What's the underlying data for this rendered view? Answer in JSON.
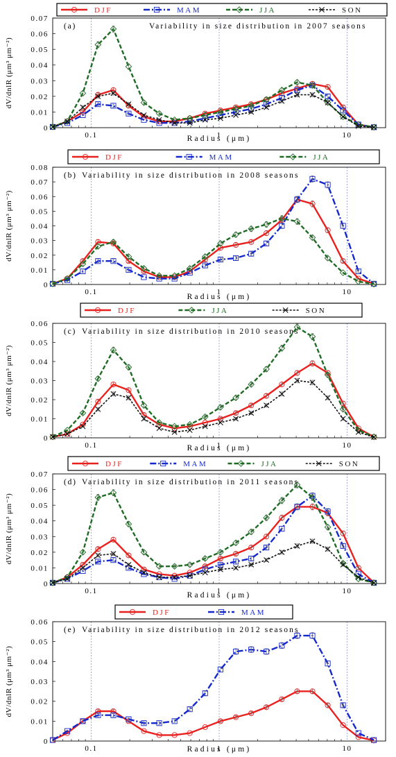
{
  "figure": {
    "xlabel": "Radius (μm)",
    "ylabel": "dV/dnlR (μm³ μm⁻²)",
    "x_ticks": [
      "0.1",
      "1",
      "10"
    ]
  },
  "colors": {
    "DJF": "#e8201e",
    "MAM": "#1428cc",
    "JJA": "#1e6b23",
    "SON": "#111111"
  },
  "markers": {
    "DJF": "circle",
    "MAM": "square",
    "JJA": "diamond",
    "SON": "cross"
  },
  "chart_data": [
    {
      "type": "line",
      "label": "(a)",
      "title": "Variability in size distribution in 2007 seasons",
      "xlabel": "Radius (μm)",
      "ylabel": "dV/dnlR (μm³ μm⁻²)",
      "x_scale": "log",
      "xlim": [
        0.05,
        20
      ],
      "ylim": [
        0,
        0.07
      ],
      "y_ticks": [
        "0",
        "0.01",
        "0.02",
        "0.03",
        "0.04",
        "0.05",
        "0.06",
        "0.07"
      ],
      "legend": [
        "DJF",
        "MAM",
        "JJA",
        "SON"
      ],
      "x": [
        0.05,
        0.065,
        0.086,
        0.113,
        0.149,
        0.196,
        0.258,
        0.34,
        0.448,
        0.59,
        0.777,
        1.024,
        1.35,
        1.78,
        2.34,
        3.09,
        4.07,
        5.36,
        7.06,
        9.3,
        12.26,
        16.2
      ],
      "series": [
        {
          "name": "DJF",
          "values": [
            0.0005,
            0.004,
            0.01,
            0.021,
            0.024,
            0.014,
            0.007,
            0.004,
            0.004,
            0.006,
            0.009,
            0.011,
            0.013,
            0.015,
            0.018,
            0.022,
            0.025,
            0.028,
            0.026,
            0.013,
            0.002,
            0.0003
          ]
        },
        {
          "name": "MAM",
          "values": [
            0.0005,
            0.003,
            0.008,
            0.015,
            0.014,
            0.009,
            0.005,
            0.003,
            0.003,
            0.004,
            0.006,
            0.008,
            0.01,
            0.012,
            0.015,
            0.019,
            0.024,
            0.027,
            0.02,
            0.011,
            0.002,
            0.0003
          ]
        },
        {
          "name": "JJA",
          "values": [
            0.0005,
            0.004,
            0.022,
            0.053,
            0.063,
            0.039,
            0.016,
            0.009,
            0.005,
            0.006,
            0.008,
            0.01,
            0.012,
            0.014,
            0.018,
            0.024,
            0.029,
            0.027,
            0.016,
            0.007,
            0.002,
            0.0003
          ]
        },
        {
          "name": "SON",
          "values": [
            0.0005,
            0.004,
            0.013,
            0.02,
            0.022,
            0.015,
            0.008,
            0.005,
            0.003,
            0.003,
            0.005,
            0.006,
            0.008,
            0.01,
            0.013,
            0.017,
            0.021,
            0.021,
            0.016,
            0.007,
            0.001,
            0.0002
          ]
        }
      ]
    },
    {
      "type": "line",
      "label": "(b)",
      "title": "Variability in size distribution in 2008 seasons",
      "xlabel": "Radius (μm)",
      "ylabel": "dV/dnlR (μm³ μm⁻²)",
      "x_scale": "log",
      "xlim": [
        0.05,
        20
      ],
      "ylim": [
        0,
        0.08
      ],
      "y_ticks": [
        "0",
        "0.01",
        "0.02",
        "0.03",
        "0.04",
        "0.05",
        "0.06",
        "0.07",
        "0.08"
      ],
      "legend": [
        "DJF",
        "MAM",
        "JJA"
      ],
      "x": [
        0.05,
        0.065,
        0.086,
        0.113,
        0.149,
        0.196,
        0.258,
        0.34,
        0.448,
        0.59,
        0.777,
        1.024,
        1.35,
        1.78,
        2.34,
        3.09,
        4.07,
        5.36,
        7.06,
        9.3,
        12.26,
        16.2
      ],
      "series": [
        {
          "name": "DJF",
          "values": [
            0.0005,
            0.004,
            0.016,
            0.029,
            0.028,
            0.016,
            0.009,
            0.005,
            0.005,
            0.009,
            0.017,
            0.025,
            0.027,
            0.029,
            0.035,
            0.044,
            0.058,
            0.055,
            0.037,
            0.016,
            0.004,
            0.0005
          ]
        },
        {
          "name": "MAM",
          "values": [
            0.0005,
            0.003,
            0.009,
            0.016,
            0.016,
            0.01,
            0.005,
            0.004,
            0.004,
            0.008,
            0.013,
            0.017,
            0.018,
            0.021,
            0.028,
            0.04,
            0.058,
            0.072,
            0.068,
            0.04,
            0.009,
            0.0005
          ]
        },
        {
          "name": "JJA",
          "values": [
            0.0005,
            0.004,
            0.014,
            0.026,
            0.029,
            0.019,
            0.011,
            0.006,
            0.006,
            0.011,
            0.019,
            0.028,
            0.034,
            0.038,
            0.041,
            0.045,
            0.043,
            0.032,
            0.018,
            0.008,
            0.002,
            0.0003
          ]
        }
      ]
    },
    {
      "type": "line",
      "label": "(c)",
      "title": "Variability in size distribution in 2010 seasons",
      "xlabel": "Radius (μm)",
      "ylabel": "dV/dnlR (μm³ μm⁻²)",
      "x_scale": "log",
      "xlim": [
        0.05,
        20
      ],
      "ylim": [
        0,
        0.06
      ],
      "y_ticks": [
        "0",
        "0.01",
        "0.02",
        "0.03",
        "0.04",
        "0.05",
        "0.06"
      ],
      "legend": [
        "DJF",
        "JJA",
        "SON"
      ],
      "x": [
        0.05,
        0.065,
        0.086,
        0.113,
        0.149,
        0.196,
        0.258,
        0.34,
        0.448,
        0.59,
        0.777,
        1.024,
        1.35,
        1.78,
        2.34,
        3.09,
        4.07,
        5.36,
        7.06,
        9.3,
        12.26,
        16.2
      ],
      "series": [
        {
          "name": "DJF",
          "values": [
            0.0005,
            0.002,
            0.007,
            0.019,
            0.028,
            0.025,
            0.012,
            0.007,
            0.005,
            0.006,
            0.008,
            0.01,
            0.013,
            0.017,
            0.022,
            0.028,
            0.034,
            0.039,
            0.034,
            0.018,
            0.005,
            0.0005
          ]
        },
        {
          "name": "JJA",
          "values": [
            0.0005,
            0.004,
            0.013,
            0.031,
            0.046,
            0.037,
            0.017,
            0.008,
            0.006,
            0.007,
            0.011,
            0.016,
            0.021,
            0.028,
            0.036,
            0.047,
            0.058,
            0.053,
            0.033,
            0.015,
            0.004,
            0.0005
          ]
        },
        {
          "name": "SON",
          "values": [
            0.0005,
            0.002,
            0.006,
            0.015,
            0.023,
            0.021,
            0.01,
            0.005,
            0.003,
            0.004,
            0.006,
            0.008,
            0.01,
            0.013,
            0.017,
            0.023,
            0.03,
            0.029,
            0.021,
            0.01,
            0.003,
            0.0003
          ]
        }
      ]
    },
    {
      "type": "line",
      "label": "(d)",
      "title": "Variability in size distribution in 2011 seasons",
      "xlabel": "Radius (μm)",
      "ylabel": "dV/dnlR (μm³ μm⁻²)",
      "x_scale": "log",
      "xlim": [
        0.05,
        20
      ],
      "ylim": [
        0,
        0.07
      ],
      "y_ticks": [
        "0",
        "0.01",
        "0.02",
        "0.03",
        "0.04",
        "0.05",
        "0.06",
        "0.07"
      ],
      "legend": [
        "DJF",
        "MAM",
        "JJA",
        "SON"
      ],
      "x": [
        0.05,
        0.065,
        0.086,
        0.113,
        0.149,
        0.196,
        0.258,
        0.34,
        0.448,
        0.59,
        0.777,
        1.024,
        1.35,
        1.78,
        2.34,
        3.09,
        4.07,
        5.36,
        7.06,
        9.3,
        12.26,
        16.2
      ],
      "series": [
        {
          "name": "DJF",
          "values": [
            0.0005,
            0.004,
            0.012,
            0.022,
            0.028,
            0.018,
            0.009,
            0.006,
            0.005,
            0.007,
            0.011,
            0.016,
            0.019,
            0.023,
            0.03,
            0.042,
            0.049,
            0.049,
            0.045,
            0.032,
            0.01,
            0.0005
          ]
        },
        {
          "name": "MAM",
          "values": [
            0.0005,
            0.003,
            0.008,
            0.014,
            0.015,
            0.01,
            0.006,
            0.004,
            0.003,
            0.005,
            0.009,
            0.012,
            0.014,
            0.016,
            0.023,
            0.035,
            0.049,
            0.056,
            0.046,
            0.024,
            0.006,
            0.0005
          ]
        },
        {
          "name": "JJA",
          "values": [
            0.0005,
            0.004,
            0.02,
            0.055,
            0.058,
            0.038,
            0.02,
            0.011,
            0.011,
            0.012,
            0.016,
            0.02,
            0.026,
            0.033,
            0.042,
            0.053,
            0.063,
            0.055,
            0.036,
            0.013,
            0.003,
            0.0005
          ]
        },
        {
          "name": "SON",
          "values": [
            0.0005,
            0.003,
            0.01,
            0.018,
            0.019,
            0.012,
            0.007,
            0.004,
            0.004,
            0.005,
            0.007,
            0.009,
            0.01,
            0.012,
            0.015,
            0.02,
            0.024,
            0.027,
            0.022,
            0.012,
            0.004,
            0.0003
          ]
        }
      ]
    },
    {
      "type": "line",
      "label": "(e)",
      "title": "Variability in size distribution in 2012 seasons",
      "xlabel": "Radius (μm)",
      "ylabel": "dV/dnlR (μm³ μm⁻²)",
      "x_scale": "log",
      "xlim": [
        0.05,
        20
      ],
      "ylim": [
        0,
        0.06
      ],
      "y_ticks": [
        "0",
        "0.01",
        "0.02",
        "0.03",
        "0.04",
        "0.05",
        "0.06"
      ],
      "legend": [
        "DJF",
        "MAM"
      ],
      "x": [
        0.05,
        0.065,
        0.086,
        0.113,
        0.149,
        0.196,
        0.258,
        0.34,
        0.448,
        0.59,
        0.777,
        1.024,
        1.35,
        1.78,
        2.34,
        3.09,
        4.07,
        5.36,
        7.06,
        9.3,
        12.26,
        16.2
      ],
      "series": [
        {
          "name": "DJF",
          "values": [
            0.0005,
            0.004,
            0.01,
            0.015,
            0.015,
            0.01,
            0.005,
            0.003,
            0.003,
            0.004,
            0.007,
            0.01,
            0.012,
            0.014,
            0.017,
            0.021,
            0.025,
            0.025,
            0.018,
            0.008,
            0.002,
            0.0003
          ]
        },
        {
          "name": "MAM",
          "values": [
            0.0005,
            0.005,
            0.01,
            0.013,
            0.013,
            0.011,
            0.009,
            0.009,
            0.01,
            0.016,
            0.024,
            0.036,
            0.045,
            0.046,
            0.045,
            0.048,
            0.053,
            0.053,
            0.039,
            0.018,
            0.004,
            0.0005
          ]
        }
      ]
    }
  ]
}
